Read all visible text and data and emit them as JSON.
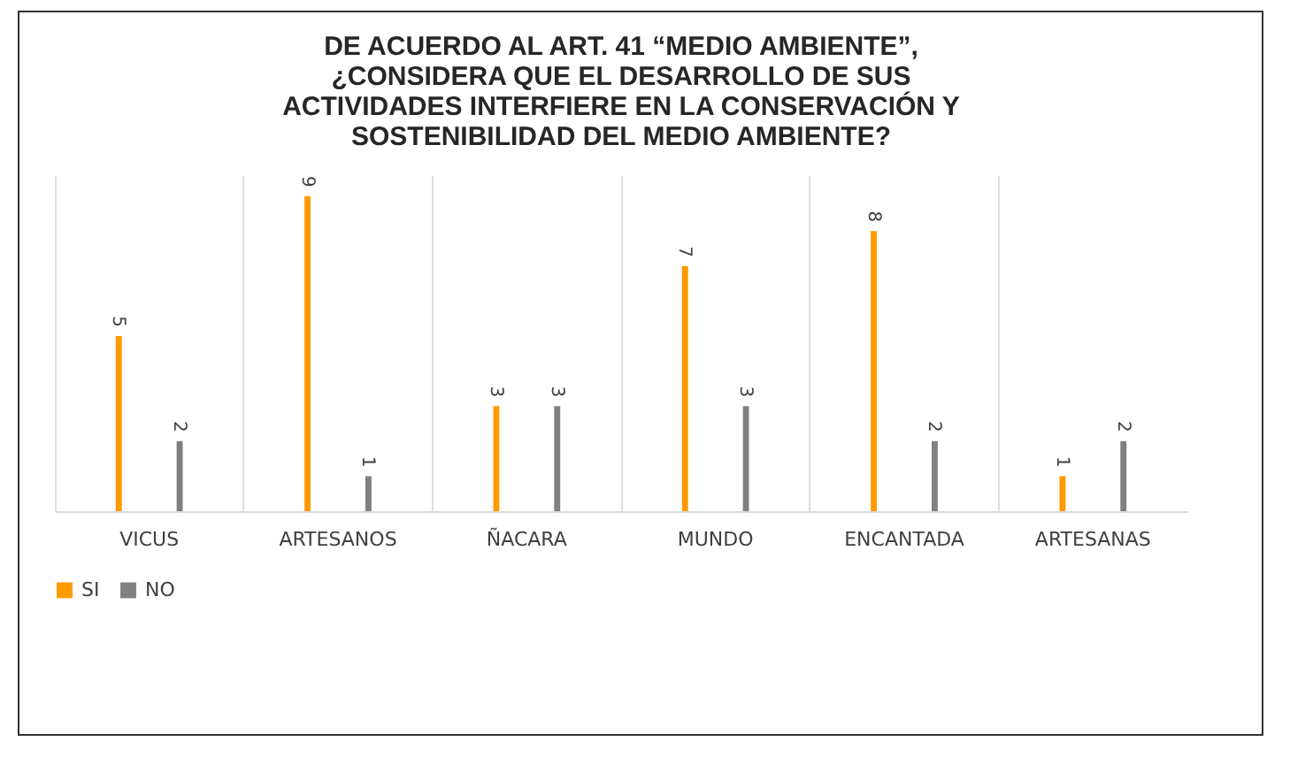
{
  "chart_data": {
    "type": "bar",
    "title": "DE ACUERDO AL ART. 41 “MEDIO AMBIENTE”,\n¿CONSIDERA QUE EL DESARROLLO DE SUS\nACTIVIDADES INTERFIERE EN LA CONSERVACIÓN Y\nSOSTENIBILIDAD DEL MEDIO AMBIENTE?",
    "categories": [
      "VICUS",
      "ARTESANOS",
      "ÑACARA",
      "MUNDO",
      "ENCANTADA",
      "ARTESANAS"
    ],
    "series": [
      {
        "name": "SI",
        "color": "#ff9900",
        "values": [
          5,
          9,
          3,
          7,
          8,
          1
        ]
      },
      {
        "name": "NO",
        "color": "#808080",
        "values": [
          2,
          1,
          3,
          3,
          2,
          2
        ]
      }
    ],
    "ylim": [
      0,
      9.6
    ],
    "data_labels": true,
    "grid": "x",
    "legend": "bottom",
    "tick_labels": "x"
  }
}
